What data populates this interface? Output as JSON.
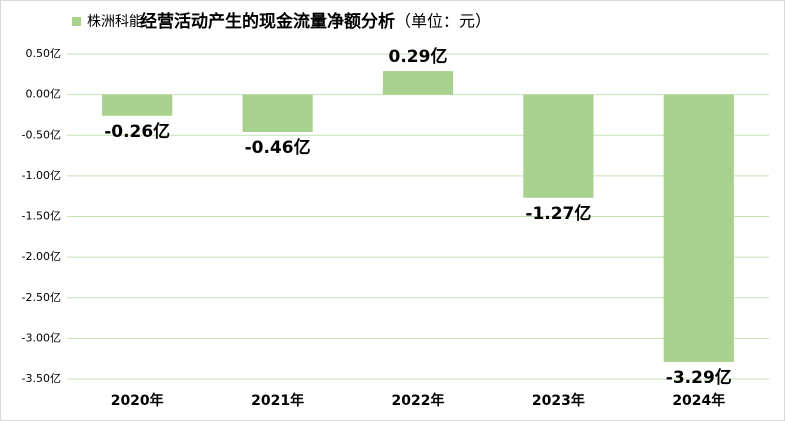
{
  "chart_data": {
    "type": "bar",
    "title": "经营活动产生的现金流量净额分析",
    "unit_note": "（单位：元）",
    "categories": [
      "2020年",
      "2021年",
      "2022年",
      "2023年",
      "2024年"
    ],
    "series": [
      {
        "name": "株洲科能",
        "color": "#a9d18e",
        "values": [
          -0.26,
          -0.46,
          0.29,
          -1.27,
          -3.29
        ],
        "value_labels": [
          "-0.26亿",
          "-0.46亿",
          "0.29亿",
          "-1.27亿",
          "-3.29亿"
        ]
      }
    ],
    "ylim": [
      -3.5,
      0.5
    ],
    "yticks": [
      {
        "value": 0.5,
        "label": "0.50亿"
      },
      {
        "value": 0,
        "label": "0.00亿"
      },
      {
        "value": -0.5,
        "label": "-0.50亿"
      },
      {
        "value": -1,
        "label": "-1.00亿"
      },
      {
        "value": -1.5,
        "label": "-1.50亿"
      },
      {
        "value": -2,
        "label": "-2.00亿"
      },
      {
        "value": -2.5,
        "label": "-2.50亿"
      },
      {
        "value": -3,
        "label": "-3.00亿"
      },
      {
        "value": -3.5,
        "label": "-3.50亿"
      }
    ],
    "grid": true,
    "legend": "top-left"
  }
}
